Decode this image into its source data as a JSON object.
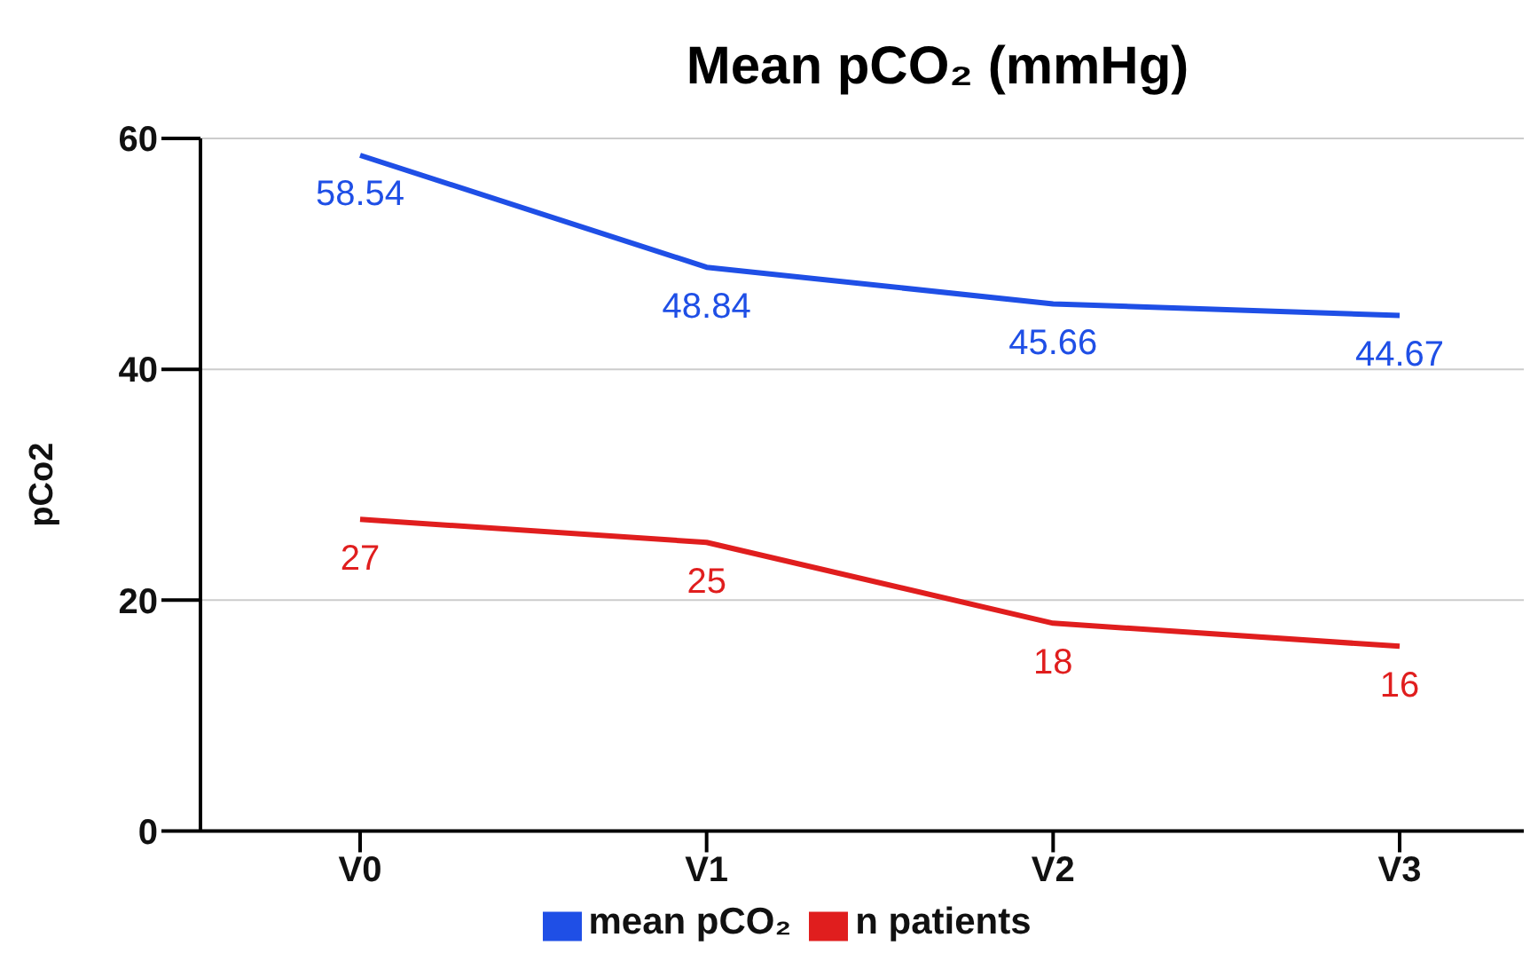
{
  "chart_data": {
    "type": "line",
    "title": "Mean pCO₂ (mmHg)",
    "ylabel": "pCo2",
    "categories": [
      "V0",
      "V1",
      "V2",
      "V3"
    ],
    "series": [
      {
        "name": "mean pCO₂",
        "color": "#1f4fe6",
        "values": [
          58.54,
          48.84,
          45.66,
          44.67
        ]
      },
      {
        "name": "n patients",
        "color": "#e01e1e",
        "values": [
          27,
          25,
          18,
          16
        ]
      }
    ],
    "ylim": [
      0,
      60
    ],
    "yticks": [
      0,
      20,
      40,
      60
    ],
    "grid": "y",
    "legend": "bottom",
    "data_labels": true,
    "marker": "none",
    "line_style": "solid"
  }
}
